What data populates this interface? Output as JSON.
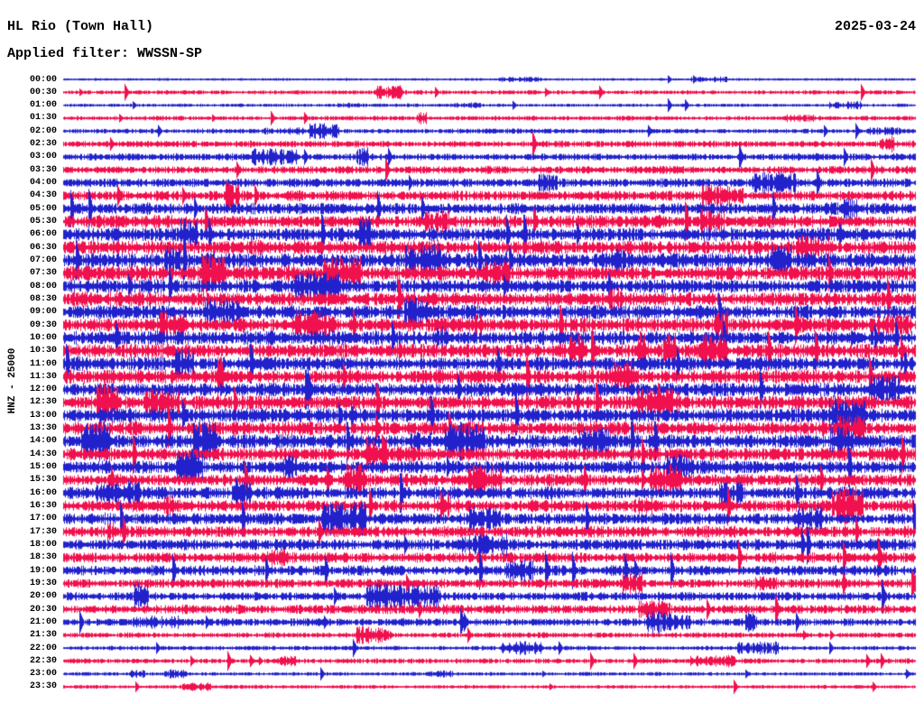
{
  "header": {
    "station": "HL Rio (Town Hall)",
    "filter": "Applied filter: WWSSN-SP",
    "date": "2025-03-24"
  },
  "y_axis_label": "HNZ - 25000",
  "colors": {
    "trace_blue": "#2222CC",
    "trace_red": "#F0114E",
    "text": "#000000",
    "background": "#FFFFFF"
  },
  "chart_data": {
    "type": "line",
    "subtype": "helicorder-seismogram",
    "title": "HL Rio (Town Hall)",
    "channel": "HNZ",
    "gain_scale": 25000,
    "applied_filter": "WWSSN-SP",
    "date": "2025-03-24",
    "minutes_per_row": 30,
    "row_color_cycle": [
      "blue",
      "red"
    ],
    "legend_position": "none",
    "grid": false,
    "rows": [
      {
        "time": "00:00",
        "color": "blue",
        "amp": 1.1,
        "seed": 1
      },
      {
        "time": "00:30",
        "color": "red",
        "amp": 1.7,
        "seed": 2
      },
      {
        "time": "01:00",
        "color": "blue",
        "amp": 1.4,
        "seed": 3
      },
      {
        "time": "01:30",
        "color": "red",
        "amp": 1.8,
        "seed": 4
      },
      {
        "time": "02:00",
        "color": "blue",
        "amp": 1.9,
        "seed": 5
      },
      {
        "time": "02:30",
        "color": "red",
        "amp": 2.6,
        "seed": 6
      },
      {
        "time": "03:00",
        "color": "blue",
        "amp": 2.8,
        "seed": 7
      },
      {
        "time": "03:30",
        "color": "red",
        "amp": 3.1,
        "seed": 8
      },
      {
        "time": "04:00",
        "color": "blue",
        "amp": 3.6,
        "seed": 9
      },
      {
        "time": "04:30",
        "color": "red",
        "amp": 4.1,
        "seed": 10
      },
      {
        "time": "05:00",
        "color": "blue",
        "amp": 4.6,
        "seed": 11
      },
      {
        "time": "05:30",
        "color": "red",
        "amp": 5.0,
        "seed": 12
      },
      {
        "time": "06:00",
        "color": "blue",
        "amp": 5.4,
        "seed": 13
      },
      {
        "time": "06:30",
        "color": "red",
        "amp": 5.6,
        "seed": 14
      },
      {
        "time": "07:00",
        "color": "blue",
        "amp": 5.8,
        "seed": 15
      },
      {
        "time": "07:30",
        "color": "red",
        "amp": 5.8,
        "seed": 16
      },
      {
        "time": "08:00",
        "color": "blue",
        "amp": 5.6,
        "seed": 17
      },
      {
        "time": "08:30",
        "color": "red",
        "amp": 5.6,
        "seed": 18
      },
      {
        "time": "09:00",
        "color": "blue",
        "amp": 5.5,
        "seed": 19
      },
      {
        "time": "09:30",
        "color": "red",
        "amp": 5.5,
        "seed": 20
      },
      {
        "time": "10:00",
        "color": "blue",
        "amp": 5.6,
        "seed": 21
      },
      {
        "time": "10:30",
        "color": "red",
        "amp": 5.6,
        "seed": 22
      },
      {
        "time": "11:00",
        "color": "blue",
        "amp": 5.6,
        "seed": 23
      },
      {
        "time": "11:30",
        "color": "red",
        "amp": 5.5,
        "seed": 24
      },
      {
        "time": "12:00",
        "color": "blue",
        "amp": 5.5,
        "seed": 25
      },
      {
        "time": "12:30",
        "color": "red",
        "amp": 5.6,
        "seed": 26
      },
      {
        "time": "13:00",
        "color": "blue",
        "amp": 5.5,
        "seed": 27
      },
      {
        "time": "13:30",
        "color": "red",
        "amp": 5.6,
        "seed": 28
      },
      {
        "time": "14:00",
        "color": "blue",
        "amp": 5.5,
        "seed": 29
      },
      {
        "time": "14:30",
        "color": "red",
        "amp": 5.4,
        "seed": 30
      },
      {
        "time": "15:00",
        "color": "blue",
        "amp": 5.2,
        "seed": 31
      },
      {
        "time": "15:30",
        "color": "red",
        "amp": 5.0,
        "seed": 32
      },
      {
        "time": "16:00",
        "color": "blue",
        "amp": 5.0,
        "seed": 33
      },
      {
        "time": "16:30",
        "color": "red",
        "amp": 4.8,
        "seed": 34
      },
      {
        "time": "17:00",
        "color": "blue",
        "amp": 4.7,
        "seed": 35
      },
      {
        "time": "17:30",
        "color": "red",
        "amp": 4.6,
        "seed": 36
      },
      {
        "time": "18:00",
        "color": "blue",
        "amp": 4.5,
        "seed": 37
      },
      {
        "time": "18:30",
        "color": "red",
        "amp": 4.2,
        "seed": 38
      },
      {
        "time": "19:00",
        "color": "blue",
        "amp": 4.1,
        "seed": 39
      },
      {
        "time": "19:30",
        "color": "red",
        "amp": 3.7,
        "seed": 40
      },
      {
        "time": "20:00",
        "color": "blue",
        "amp": 3.6,
        "seed": 41
      },
      {
        "time": "20:30",
        "color": "red",
        "amp": 3.6,
        "seed": 42
      },
      {
        "time": "21:00",
        "color": "blue",
        "amp": 3.1,
        "seed": 43
      },
      {
        "time": "21:30",
        "color": "red",
        "amp": 2.2,
        "seed": 44
      },
      {
        "time": "22:00",
        "color": "blue",
        "amp": 1.8,
        "seed": 45
      },
      {
        "time": "22:30",
        "color": "red",
        "amp": 2.0,
        "seed": 46
      },
      {
        "time": "23:00",
        "color": "blue",
        "amp": 1.5,
        "seed": 47
      },
      {
        "time": "23:30",
        "color": "red",
        "amp": 1.5,
        "seed": 48
      }
    ]
  }
}
